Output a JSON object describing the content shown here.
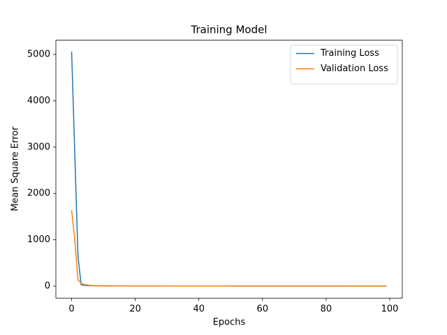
{
  "chart_data": {
    "type": "line",
    "title": "Training Model",
    "x_label": "Epochs",
    "y_label": "Mean Square Error",
    "x": [
      0,
      1,
      2,
      3,
      4,
      5,
      6,
      7,
      8,
      9,
      10,
      11,
      12,
      13,
      14,
      15,
      16,
      17,
      18,
      19,
      20,
      21,
      22,
      23,
      24,
      25,
      26,
      27,
      28,
      29,
      30,
      31,
      32,
      33,
      34,
      35,
      36,
      37,
      38,
      39,
      40,
      41,
      42,
      43,
      44,
      45,
      46,
      47,
      48,
      49,
      50,
      51,
      52,
      53,
      54,
      55,
      56,
      57,
      58,
      59,
      60,
      61,
      62,
      63,
      64,
      65,
      66,
      67,
      68,
      69,
      70,
      71,
      72,
      73,
      74,
      75,
      76,
      77,
      78,
      79,
      80,
      81,
      82,
      83,
      84,
      85,
      86,
      87,
      88,
      89,
      90,
      91,
      92,
      93,
      94,
      95,
      96,
      97,
      98,
      99
    ],
    "series": [
      {
        "name": "Training Loss",
        "color": "#1f77b4",
        "values": [
          5060,
          2850,
          640,
          30,
          16,
          11,
          9,
          8,
          7,
          6.5,
          6,
          5.8,
          5.6,
          5.4,
          5.2,
          5,
          4.9,
          4.8,
          4.7,
          4.6,
          4.5,
          4.4,
          4.3,
          4.2,
          4.1,
          4,
          3.9,
          3.8,
          3.8,
          3.7,
          3.7,
          3.6,
          3.6,
          3.5,
          3.5,
          3.4,
          3.4,
          3.3,
          3.3,
          3.2,
          3.2,
          3.1,
          3.1,
          3,
          3,
          3,
          2.9,
          2.9,
          2.9,
          2.8,
          2.8,
          2.8,
          2.7,
          2.7,
          2.7,
          2.6,
          2.6,
          2.6,
          2.5,
          2.5,
          2.5,
          2.5,
          2.4,
          2.4,
          2.4,
          2.4,
          2.3,
          2.3,
          2.3,
          2.3,
          2.2,
          2.2,
          2.2,
          2.2,
          2.1,
          2.1,
          2.1,
          2.1,
          2,
          2,
          2,
          2,
          2,
          1.9,
          1.9,
          1.9,
          1.9,
          1.9,
          1.8,
          1.8,
          1.8,
          1.8,
          1.8,
          1.7,
          1.7,
          1.7,
          1.7,
          1.7,
          1.6,
          1.6
        ]
      },
      {
        "name": "Validation Loss",
        "color": "#ff7f0e",
        "values": [
          1640,
          1000,
          130,
          60,
          35,
          22,
          15,
          11,
          9,
          8,
          7.5,
          7,
          6.8,
          6.6,
          6.4,
          6.2,
          6,
          5.9,
          5.8,
          5.7,
          5.5,
          5.4,
          5.3,
          5.2,
          5.1,
          5,
          4.9,
          4.8,
          4.8,
          4.7,
          4.7,
          4.6,
          4.6,
          4.5,
          4.5,
          4.4,
          4.4,
          4.3,
          4.3,
          4.2,
          4.2,
          4.1,
          4.1,
          4,
          4,
          4,
          3.9,
          3.9,
          3.9,
          3.8,
          3.8,
          3.8,
          3.7,
          3.7,
          3.7,
          3.6,
          3.6,
          3.6,
          3.5,
          3.5,
          3.5,
          3.5,
          3.4,
          3.4,
          3.4,
          3.4,
          3.3,
          3.3,
          3.3,
          3.3,
          3.2,
          3.2,
          3.2,
          3.2,
          3.1,
          3.1,
          3.1,
          3.1,
          3,
          3,
          3,
          3,
          3,
          2.9,
          2.9,
          2.9,
          2.9,
          2.9,
          2.8,
          2.8,
          2.8,
          2.8,
          2.8,
          2.7,
          2.7,
          2.7,
          2.7,
          2.7,
          2.6,
          2.6
        ]
      }
    ],
    "xlim": [
      -4.95,
      103.95
    ],
    "ylim": [
      -259,
      5307
    ],
    "xticks": [
      0,
      20,
      40,
      60,
      80,
      100
    ],
    "yticks": [
      0,
      1000,
      2000,
      3000,
      4000,
      5000
    ],
    "grid": false,
    "legend": "upper right"
  }
}
